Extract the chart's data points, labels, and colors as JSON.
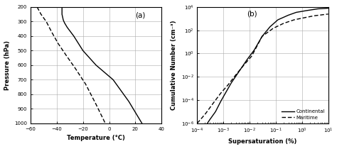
{
  "panel_a": {
    "label": "(a)",
    "xlabel": "Temperature (°C)",
    "ylabel": "Pressure (hPa)",
    "xlim": [
      -60,
      40
    ],
    "ylim": [
      1000,
      200
    ],
    "xticks": [
      -60,
      -40,
      -20,
      0,
      20,
      40
    ],
    "yticks": [
      200,
      300,
      400,
      500,
      600,
      700,
      800,
      900,
      1000
    ],
    "temp_solid": [
      -36,
      -36,
      -36,
      -35.5,
      -35,
      -34,
      -32,
      -27,
      -20,
      -10,
      3,
      15,
      25
    ],
    "pres_solid": [
      200,
      220,
      250,
      270,
      290,
      310,
      340,
      400,
      500,
      600,
      700,
      850,
      1000
    ],
    "temp_dashed": [
      -55,
      -52,
      -48,
      -44,
      -39,
      -33,
      -26,
      -18,
      -10,
      -3
    ],
    "pres_dashed": [
      200,
      250,
      300,
      370,
      450,
      530,
      620,
      730,
      870,
      1000
    ]
  },
  "panel_b": {
    "label": "(b)",
    "xlabel": "Supersaturation (%)",
    "ylabel": "Cumulative Number (cm⁻³)",
    "continental_ss": [
      0.0001,
      0.0002,
      0.0003,
      0.0005,
      0.0008,
      0.0012,
      0.002,
      0.004,
      0.008,
      0.015,
      0.03,
      0.06,
      0.12,
      0.3,
      0.6,
      1.5,
      4.0,
      10.0
    ],
    "continental_n": [
      1e-07,
      5e-07,
      2e-06,
      1e-05,
      8e-05,
      0.0004,
      0.003,
      0.03,
      0.3,
      2.0,
      30.0,
      200.0,
      800.0,
      2000.0,
      3500.0,
      5000.0,
      7000.0,
      8000.0
    ],
    "maritime_ss": [
      0.0001,
      0.0002,
      0.0004,
      0.0008,
      0.0015,
      0.003,
      0.006,
      0.012,
      0.03,
      0.08,
      0.2,
      0.5,
      1.2,
      3.0,
      10.0
    ],
    "maritime_n": [
      1e-06,
      6e-06,
      5e-05,
      0.0004,
      0.002,
      0.015,
      0.1,
      0.6,
      30.0,
      150.0,
      400.0,
      800.0,
      1200.0,
      1800.0,
      2500.0
    ],
    "legend_continental": "Continental",
    "legend_maritime": "Maritime"
  },
  "line_color": "#000000",
  "bg_color": "#ffffff",
  "grid_color": "#aaaaaa"
}
